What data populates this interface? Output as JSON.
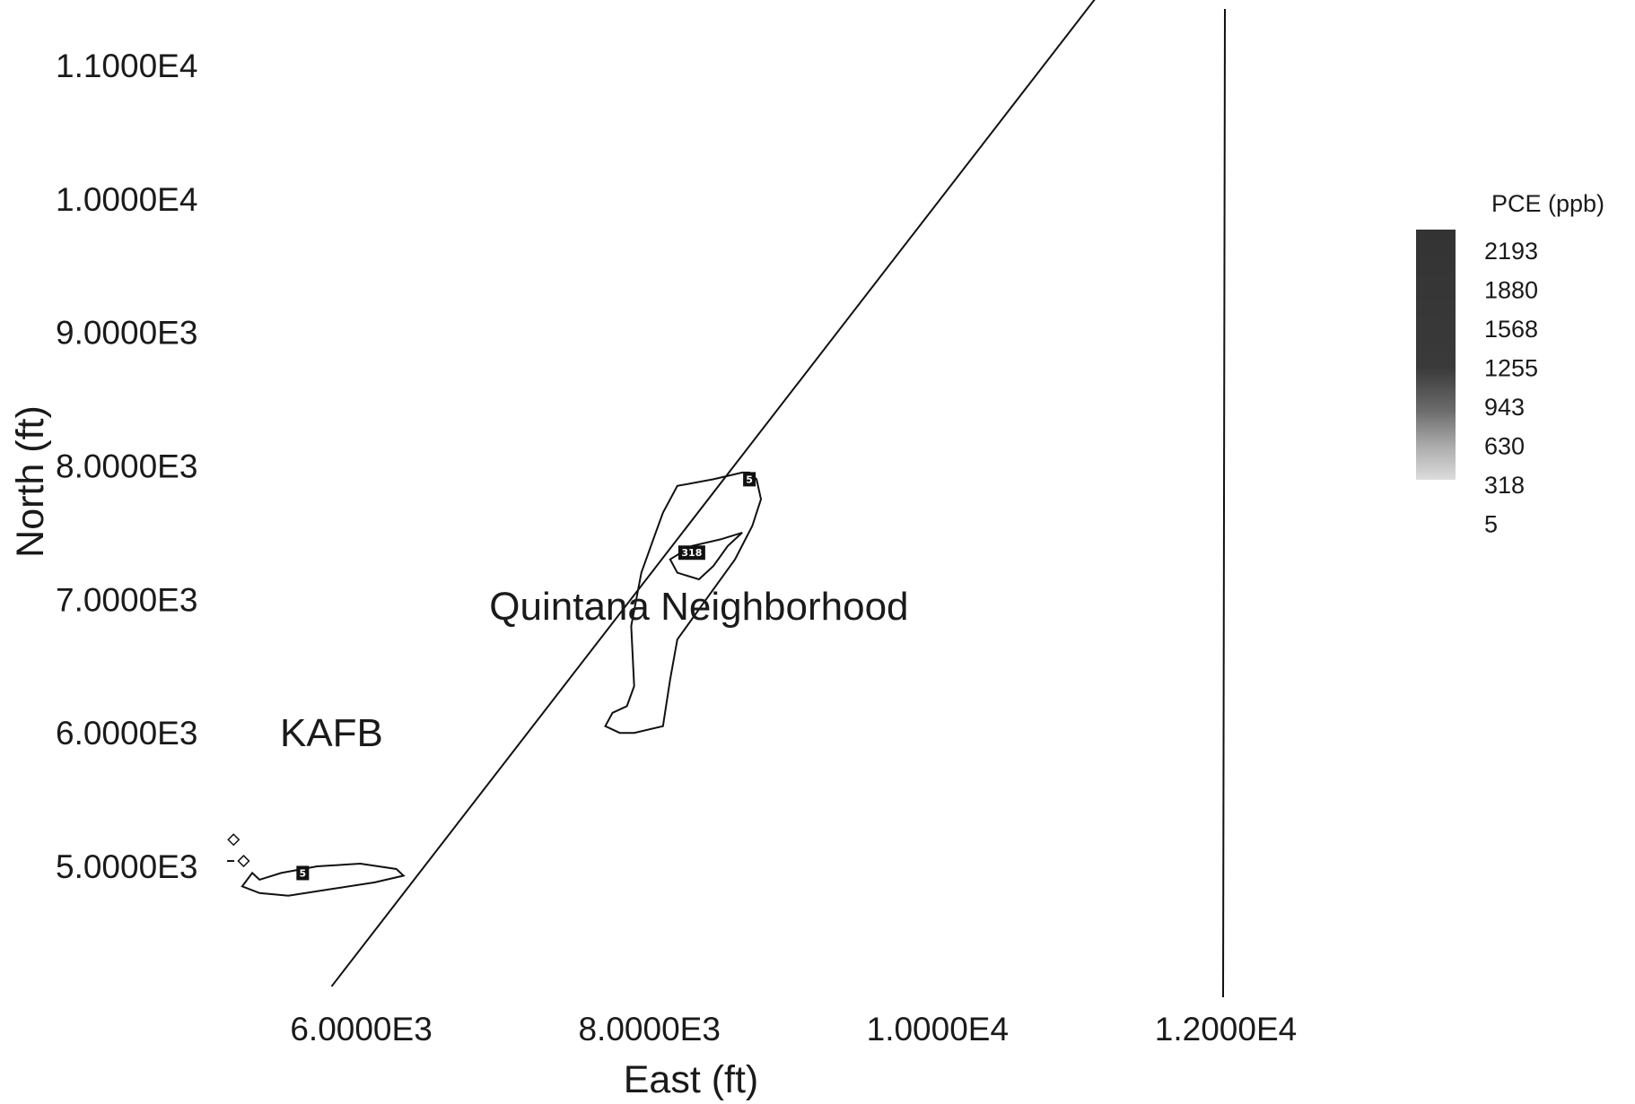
{
  "chart_data": {
    "type": "contour",
    "xlabel": "East (ft)",
    "ylabel": "North (ft)",
    "x_ticks": [
      "6.0000E3",
      "8.0000E3",
      "1.0000E4",
      "1.2000E4"
    ],
    "x_tick_values": [
      6000,
      8000,
      10000,
      12000
    ],
    "y_ticks": [
      "1.1000E4",
      "1.0000E4",
      "9.0000E3",
      "8.0000E3",
      "7.0000E3",
      "6.0000E3",
      "5.0000E3"
    ],
    "y_tick_values": [
      11000,
      10000,
      9000,
      8000,
      7000,
      6000,
      5000
    ],
    "xlim": [
      5000,
      12000
    ],
    "ylim": [
      4000,
      11500
    ],
    "legend": {
      "title": "PCE (ppb)",
      "levels": [
        "2193",
        "1880",
        "1568",
        "1255",
        "943",
        "630",
        "318",
        "5"
      ],
      "placement": "right"
    },
    "annotations": [
      {
        "text": "Quintana Neighborhood",
        "x": 8350,
        "y": 6950
      },
      {
        "text": "KAFB",
        "x": 5800,
        "y": 6000
      }
    ],
    "boundary_line": {
      "start": [
        5800,
        4100
      ],
      "end": [
        11100,
        11500
      ]
    },
    "vertical_line": {
      "x": 12000
    },
    "contours": [
      {
        "level_label": "5",
        "label_position": [
          8700,
          7900
        ],
        "points": [
          [
            8700,
            7950
          ],
          [
            8750,
            7900
          ],
          [
            8780,
            7750
          ],
          [
            8720,
            7550
          ],
          [
            8600,
            7300
          ],
          [
            8400,
            7000
          ],
          [
            8200,
            6700
          ],
          [
            8150,
            6400
          ],
          [
            8100,
            6050
          ],
          [
            7900,
            6000
          ],
          [
            7800,
            6000
          ],
          [
            7700,
            6050
          ],
          [
            7750,
            6150
          ],
          [
            7850,
            6200
          ],
          [
            7900,
            6350
          ],
          [
            7880,
            6800
          ],
          [
            7950,
            7200
          ],
          [
            8050,
            7500
          ],
          [
            8100,
            7650
          ],
          [
            8200,
            7850
          ],
          [
            8450,
            7900
          ],
          [
            8650,
            7950
          ]
        ]
      },
      {
        "level_label": "318",
        "label_position": [
          8300,
          7350
        ],
        "points": [
          [
            8650,
            7500
          ],
          [
            8550,
            7400
          ],
          [
            8450,
            7250
          ],
          [
            8350,
            7150
          ],
          [
            8200,
            7200
          ],
          [
            8150,
            7300
          ],
          [
            8300,
            7400
          ],
          [
            8500,
            7450
          ]
        ]
      },
      {
        "level_label": "5",
        "label_position": [
          5600,
          4950
        ],
        "points": [
          [
            5250,
            4950
          ],
          [
            5300,
            4900
          ],
          [
            5450,
            4950
          ],
          [
            5700,
            5000
          ],
          [
            6000,
            5020
          ],
          [
            6250,
            4980
          ],
          [
            6300,
            4930
          ],
          [
            6100,
            4880
          ],
          [
            5800,
            4830
          ],
          [
            5500,
            4780
          ],
          [
            5300,
            4800
          ],
          [
            5180,
            4850
          ]
        ]
      }
    ],
    "markers": [
      {
        "symbol": "diamond",
        "x": 5120,
        "y": 5200
      },
      {
        "symbol": "diamond",
        "x": 5190,
        "y": 5040
      },
      {
        "symbol": "dash",
        "x": 5100,
        "y": 5040
      }
    ]
  }
}
